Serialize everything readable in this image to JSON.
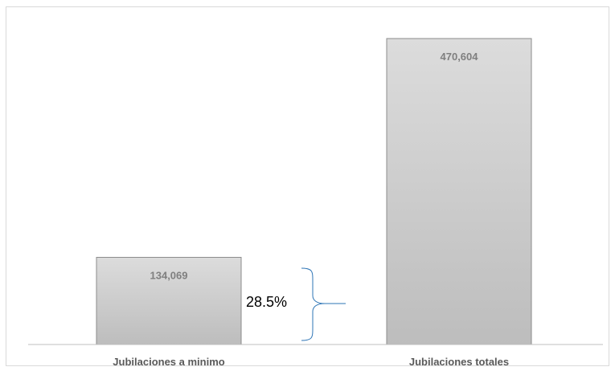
{
  "chart_data": {
    "type": "bar",
    "categories": [
      "Jubilaciones a minimo",
      "Jubilaciones totales"
    ],
    "values": [
      134069,
      470604
    ],
    "data_labels": [
      "134,069",
      "470,604"
    ],
    "ylim": [
      0,
      520000
    ],
    "grid": false,
    "legend": "none",
    "annotation": {
      "text": "28.5%"
    },
    "colors": {
      "bar_top": "#dcdcdc",
      "bar_bottom": "#bdbdbd",
      "bar_edge": "#8c8c8c",
      "axis": "#bfbfbf",
      "bracket": "#2e75b6"
    }
  }
}
